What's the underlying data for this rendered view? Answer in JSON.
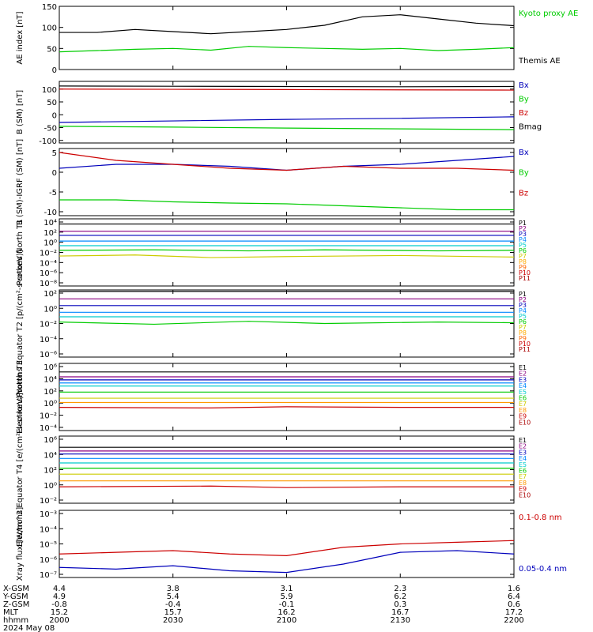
{
  "chart_data": [
    {
      "type": "line",
      "ylabel": "AE index [nT]",
      "ylim": [
        0,
        150
      ],
      "yscale": "linear",
      "yticks": [
        "0",
        "50",
        "100",
        "150"
      ],
      "series": [
        {
          "name": "Kyoto proxy AE",
          "color": "#00cc00",
          "x": [
            2000,
            2010,
            2020,
            2030,
            2040,
            2050,
            2100,
            2110,
            2120,
            2130,
            2140,
            2150,
            2200
          ],
          "values": [
            42,
            45,
            48,
            50,
            46,
            55,
            52,
            50,
            48,
            50,
            45,
            48,
            52
          ]
        },
        {
          "name": "Themis AE",
          "color": "#000000",
          "x": [
            2000,
            2010,
            2020,
            2030,
            2040,
            2050,
            2100,
            2110,
            2120,
            2130,
            2140,
            2150,
            2200
          ],
          "values": [
            88,
            88,
            95,
            90,
            85,
            90,
            95,
            105,
            125,
            130,
            120,
            110,
            104
          ]
        }
      ]
    },
    {
      "type": "line",
      "ylabel": "B (SM) [nT]",
      "ylim": [
        -110,
        130
      ],
      "yscale": "linear",
      "yticks": [
        "-100",
        "-50",
        "0",
        "50",
        "100"
      ],
      "series": [
        {
          "name": "Bx",
          "color": "#0000bb",
          "x": [
            2000,
            2030,
            2100,
            2130,
            2200
          ],
          "values": [
            -30,
            -24,
            -18,
            -14,
            -8
          ]
        },
        {
          "name": "By",
          "color": "#00cc00",
          "x": [
            2000,
            2030,
            2100,
            2130,
            2200
          ],
          "values": [
            -45,
            -48,
            -52,
            -55,
            -58
          ]
        },
        {
          "name": "Bz",
          "color": "#cc0000",
          "x": [
            2000,
            2030,
            2100,
            2130,
            2200
          ],
          "values": [
            100,
            99,
            98,
            97,
            96
          ]
        },
        {
          "name": "Bmag",
          "color": "#000000",
          "x": [
            2000,
            2030,
            2100,
            2130,
            2200
          ],
          "values": [
            112,
            111,
            110,
            109,
            110
          ]
        }
      ]
    },
    {
      "type": "line",
      "ylabel": "B (SM)-IGRF (SM) [nT]",
      "ylim": [
        -11,
        6
      ],
      "yscale": "linear",
      "yticks": [
        "-10",
        "-5",
        "0",
        "5"
      ],
      "series": [
        {
          "name": "Bx",
          "color": "#0000bb",
          "x": [
            2000,
            2015,
            2030,
            2045,
            2100,
            2115,
            2130,
            2145,
            2200
          ],
          "values": [
            1.0,
            2.0,
            2.0,
            1.5,
            0.5,
            1.5,
            2.0,
            3.0,
            4.0
          ]
        },
        {
          "name": "By",
          "color": "#00cc00",
          "x": [
            2000,
            2015,
            2030,
            2045,
            2100,
            2115,
            2130,
            2145,
            2200
          ],
          "values": [
            -7.0,
            -7.0,
            -7.5,
            -7.8,
            -8.0,
            -8.5,
            -9.0,
            -9.5,
            -9.5
          ]
        },
        {
          "name": "Bz",
          "color": "#cc0000",
          "x": [
            2000,
            2015,
            2030,
            2045,
            2100,
            2115,
            2130,
            2145,
            2200
          ],
          "values": [
            5.0,
            3.0,
            2.0,
            1.0,
            0.5,
            1.5,
            1.0,
            1.0,
            0.5
          ]
        }
      ]
    },
    {
      "type": "line",
      "ylabel": "Protons North T1",
      "ylim": [
        -9,
        4
      ],
      "yscale": "log",
      "yticks": [
        "10⁴",
        "10²",
        "10⁰",
        "10⁻²",
        "10⁻⁴",
        "10⁻⁶",
        "10⁻⁸"
      ],
      "series": [
        {
          "name": "P1",
          "color": "#000000",
          "x": [
            2000,
            2200
          ],
          "values": [
            3.0,
            3.0
          ]
        },
        {
          "name": "P2",
          "color": "#8b0080",
          "x": [
            2000,
            2200
          ],
          "values": [
            1.6,
            1.6
          ]
        },
        {
          "name": "P3",
          "color": "#0000bb",
          "x": [
            2000,
            2200
          ],
          "values": [
            0.8,
            0.8
          ]
        },
        {
          "name": "P4",
          "color": "#0088ff",
          "x": [
            2000,
            2200
          ],
          "values": [
            -0.3,
            -0.3
          ]
        },
        {
          "name": "P5",
          "color": "#00cccc",
          "x": [
            2000,
            2200
          ],
          "values": [
            -1.2,
            -1.2
          ]
        },
        {
          "name": "P6",
          "color": "#00cc00",
          "x": [
            2000,
            2025,
            2050,
            2110,
            2140,
            2200
          ],
          "values": [
            -2.1,
            -2.0,
            -2.2,
            -2.0,
            -2.2,
            -2.1
          ]
        },
        {
          "name": "P7",
          "color": "#cccc00",
          "x": [
            2000,
            2020,
            2040,
            2100,
            2130,
            2200
          ],
          "values": [
            -3.2,
            -3.0,
            -3.5,
            -3.3,
            -3.1,
            -3.4
          ]
        },
        {
          "name": "P8",
          "color": "#ffaa00",
          "x": [
            2000,
            2200
          ],
          "values": [
            null,
            null
          ]
        },
        {
          "name": "P9",
          "color": "#ff6600",
          "x": [
            2000,
            2200
          ],
          "values": [
            null,
            null
          ]
        },
        {
          "name": "P10",
          "color": "#cc0000",
          "x": [
            2000,
            2200
          ],
          "values": [
            null,
            null
          ]
        },
        {
          "name": "P11",
          "color": "#aa0000",
          "x": [
            2000,
            2200
          ],
          "values": [
            null,
            null
          ]
        }
      ]
    },
    {
      "type": "line",
      "ylabel": "Protons Equator T2 [p/(cm²-s-sr-keV)]",
      "ylim": [
        -7,
        2
      ],
      "yscale": "log",
      "yticks": [
        "10²",
        "10⁰",
        "10⁻²",
        "10⁻⁴",
        "10⁻⁶"
      ],
      "series": [
        {
          "name": "P1",
          "color": "#000000",
          "x": [
            2000,
            2200
          ],
          "values": [
            1.8,
            1.8
          ]
        },
        {
          "name": "P2",
          "color": "#8b0080",
          "x": [
            2000,
            2200
          ],
          "values": [
            0.8,
            0.8
          ]
        },
        {
          "name": "P3",
          "color": "#0000bb",
          "x": [
            2000,
            2200
          ],
          "values": [
            -0.1,
            -0.1
          ]
        },
        {
          "name": "P4",
          "color": "#0088ff",
          "x": [
            2000,
            2200
          ],
          "values": [
            -1.0,
            -1.0
          ]
        },
        {
          "name": "P5",
          "color": "#00cccc",
          "x": [
            2000,
            2200
          ],
          "values": [
            -1.6,
            -1.6
          ]
        },
        {
          "name": "P6",
          "color": "#00cc00",
          "x": [
            2000,
            2025,
            2050,
            2110,
            2140,
            2200
          ],
          "values": [
            -2.3,
            -2.6,
            -2.2,
            -2.5,
            -2.3,
            -2.4
          ]
        },
        {
          "name": "P7",
          "color": "#cccc00",
          "x": [
            2000,
            2200
          ],
          "values": [
            null,
            null
          ]
        },
        {
          "name": "P8",
          "color": "#ffaa00",
          "x": [
            2000,
            2200
          ],
          "values": [
            null,
            null
          ]
        },
        {
          "name": "P9",
          "color": "#ff6600",
          "x": [
            2000,
            2200
          ],
          "values": [
            null,
            null
          ]
        },
        {
          "name": "P10",
          "color": "#cc0000",
          "x": [
            2000,
            2200
          ],
          "values": [
            null,
            null
          ]
        },
        {
          "name": "P11",
          "color": "#aa0000",
          "x": [
            2000,
            2200
          ],
          "values": [
            null,
            null
          ]
        }
      ]
    },
    {
      "type": "line",
      "ylabel": "Electrons North T3",
      "ylim": [
        -5,
        6
      ],
      "yscale": "log",
      "yticks": [
        "10⁶",
        "10⁴",
        "10²",
        "10⁰",
        "10⁻²",
        "10⁻⁴"
      ],
      "series": [
        {
          "name": "E1",
          "color": "#000000",
          "x": [
            2000,
            2200
          ],
          "values": [
            4.6,
            4.6
          ]
        },
        {
          "name": "E2",
          "color": "#8b0080",
          "x": [
            2000,
            2200
          ],
          "values": [
            3.8,
            3.8
          ]
        },
        {
          "name": "E3",
          "color": "#0000bb",
          "x": [
            2000,
            2200
          ],
          "values": [
            3.3,
            3.3
          ]
        },
        {
          "name": "E4",
          "color": "#0088ff",
          "x": [
            2000,
            2200
          ],
          "values": [
            2.8,
            2.8
          ]
        },
        {
          "name": "E5",
          "color": "#00cccc",
          "x": [
            2000,
            2200
          ],
          "values": [
            2.3,
            2.3
          ]
        },
        {
          "name": "E6",
          "color": "#00cc00",
          "x": [
            2000,
            2200
          ],
          "values": [
            1.3,
            1.3
          ]
        },
        {
          "name": "E7",
          "color": "#cccc00",
          "x": [
            2000,
            2200
          ],
          "values": [
            0.3,
            0.3
          ]
        },
        {
          "name": "E8",
          "color": "#ff9900",
          "x": [
            2000,
            2200
          ],
          "values": [
            -0.4,
            -0.4
          ]
        },
        {
          "name": "E9",
          "color": "#cc0000",
          "x": [
            2000,
            2040,
            2100,
            2130,
            2200
          ],
          "values": [
            -1.2,
            -1.3,
            -1.1,
            -1.2,
            -1.2
          ]
        },
        {
          "name": "E10",
          "color": "#aa0000",
          "x": [
            2000,
            2200
          ],
          "values": [
            null,
            null
          ]
        }
      ]
    },
    {
      "type": "line",
      "ylabel": "Electrons Equator T4 [e/(cm²-s-sr-keV)]",
      "ylim": [
        -3,
        6
      ],
      "yscale": "log",
      "yticks": [
        "10⁶",
        "10⁴",
        "10²",
        "10⁰",
        "10⁻²"
      ],
      "series": [
        {
          "name": "E1",
          "color": "#000000",
          "x": [
            2000,
            2200
          ],
          "values": [
            4.5,
            4.5
          ]
        },
        {
          "name": "E2",
          "color": "#8b0080",
          "x": [
            2000,
            2200
          ],
          "values": [
            4.0,
            4.0
          ]
        },
        {
          "name": "E3",
          "color": "#0000bb",
          "x": [
            2000,
            2200
          ],
          "values": [
            3.6,
            3.6
          ]
        },
        {
          "name": "E4",
          "color": "#0088ff",
          "x": [
            2000,
            2200
          ],
          "values": [
            3.0,
            3.0
          ]
        },
        {
          "name": "E5",
          "color": "#00cccc",
          "x": [
            2000,
            2200
          ],
          "values": [
            2.4,
            2.4
          ]
        },
        {
          "name": "E6",
          "color": "#00cc00",
          "x": [
            2000,
            2200
          ],
          "values": [
            1.7,
            1.7
          ]
        },
        {
          "name": "E7",
          "color": "#cccc00",
          "x": [
            2000,
            2200
          ],
          "values": [
            0.9,
            0.9
          ]
        },
        {
          "name": "E8",
          "color": "#ff9900",
          "x": [
            2000,
            2200
          ],
          "values": [
            0.0,
            0.0
          ]
        },
        {
          "name": "E9",
          "color": "#cc0000",
          "x": [
            2000,
            2040,
            2100,
            2130,
            2200
          ],
          "values": [
            -0.8,
            -0.7,
            -0.9,
            -0.8,
            -0.8
          ]
        },
        {
          "name": "E10",
          "color": "#aa0000",
          "x": [
            2000,
            2200
          ],
          "values": [
            null,
            null
          ]
        }
      ]
    },
    {
      "type": "line",
      "ylabel": "Xray flux [W/m^2]",
      "ylim": [
        -7,
        -3
      ],
      "yscale": "log",
      "yticks": [
        "10⁻³",
        "10⁻⁴",
        "10⁻⁵",
        "10⁻⁶",
        "10⁻⁷"
      ],
      "series": [
        {
          "name": "0.1-0.8 nm",
          "color": "#cc0000",
          "x": [
            2000,
            2015,
            2030,
            2045,
            2100,
            2115,
            2130,
            2145,
            2200
          ],
          "values": [
            -5.6,
            -5.5,
            -5.4,
            -5.6,
            -5.7,
            -5.2,
            -5.0,
            -4.9,
            -4.8
          ]
        },
        {
          "name": "0.05-0.4 nm",
          "color": "#0000bb",
          "x": [
            2000,
            2015,
            2030,
            2045,
            2100,
            2115,
            2130,
            2145,
            2200
          ],
          "values": [
            -6.4,
            -6.5,
            -6.3,
            -6.6,
            -6.7,
            -6.2,
            -5.5,
            -5.4,
            -5.6
          ]
        }
      ]
    }
  ],
  "x_axis": {
    "hhmm": [
      "2000",
      "2030",
      "2100",
      "2130",
      "2200"
    ],
    "rows": [
      {
        "label": "X-GSM",
        "values": [
          "4.4",
          "3.8",
          "3.1",
          "2.3",
          "1.6"
        ]
      },
      {
        "label": "Y-GSM",
        "values": [
          "4.9",
          "5.4",
          "5.9",
          "6.2",
          "6.4"
        ]
      },
      {
        "label": "Z-GSM",
        "values": [
          "-0.8",
          "-0.4",
          "-0.1",
          "0.3",
          "0.6"
        ]
      },
      {
        "label": "MLT",
        "values": [
          "15.2",
          "15.7",
          "16.2",
          "16.7",
          "17.2"
        ]
      },
      {
        "label": "hhmm",
        "values": [
          "2000",
          "2030",
          "2100",
          "2130",
          "2200"
        ]
      }
    ],
    "date": "2024 May 08"
  }
}
